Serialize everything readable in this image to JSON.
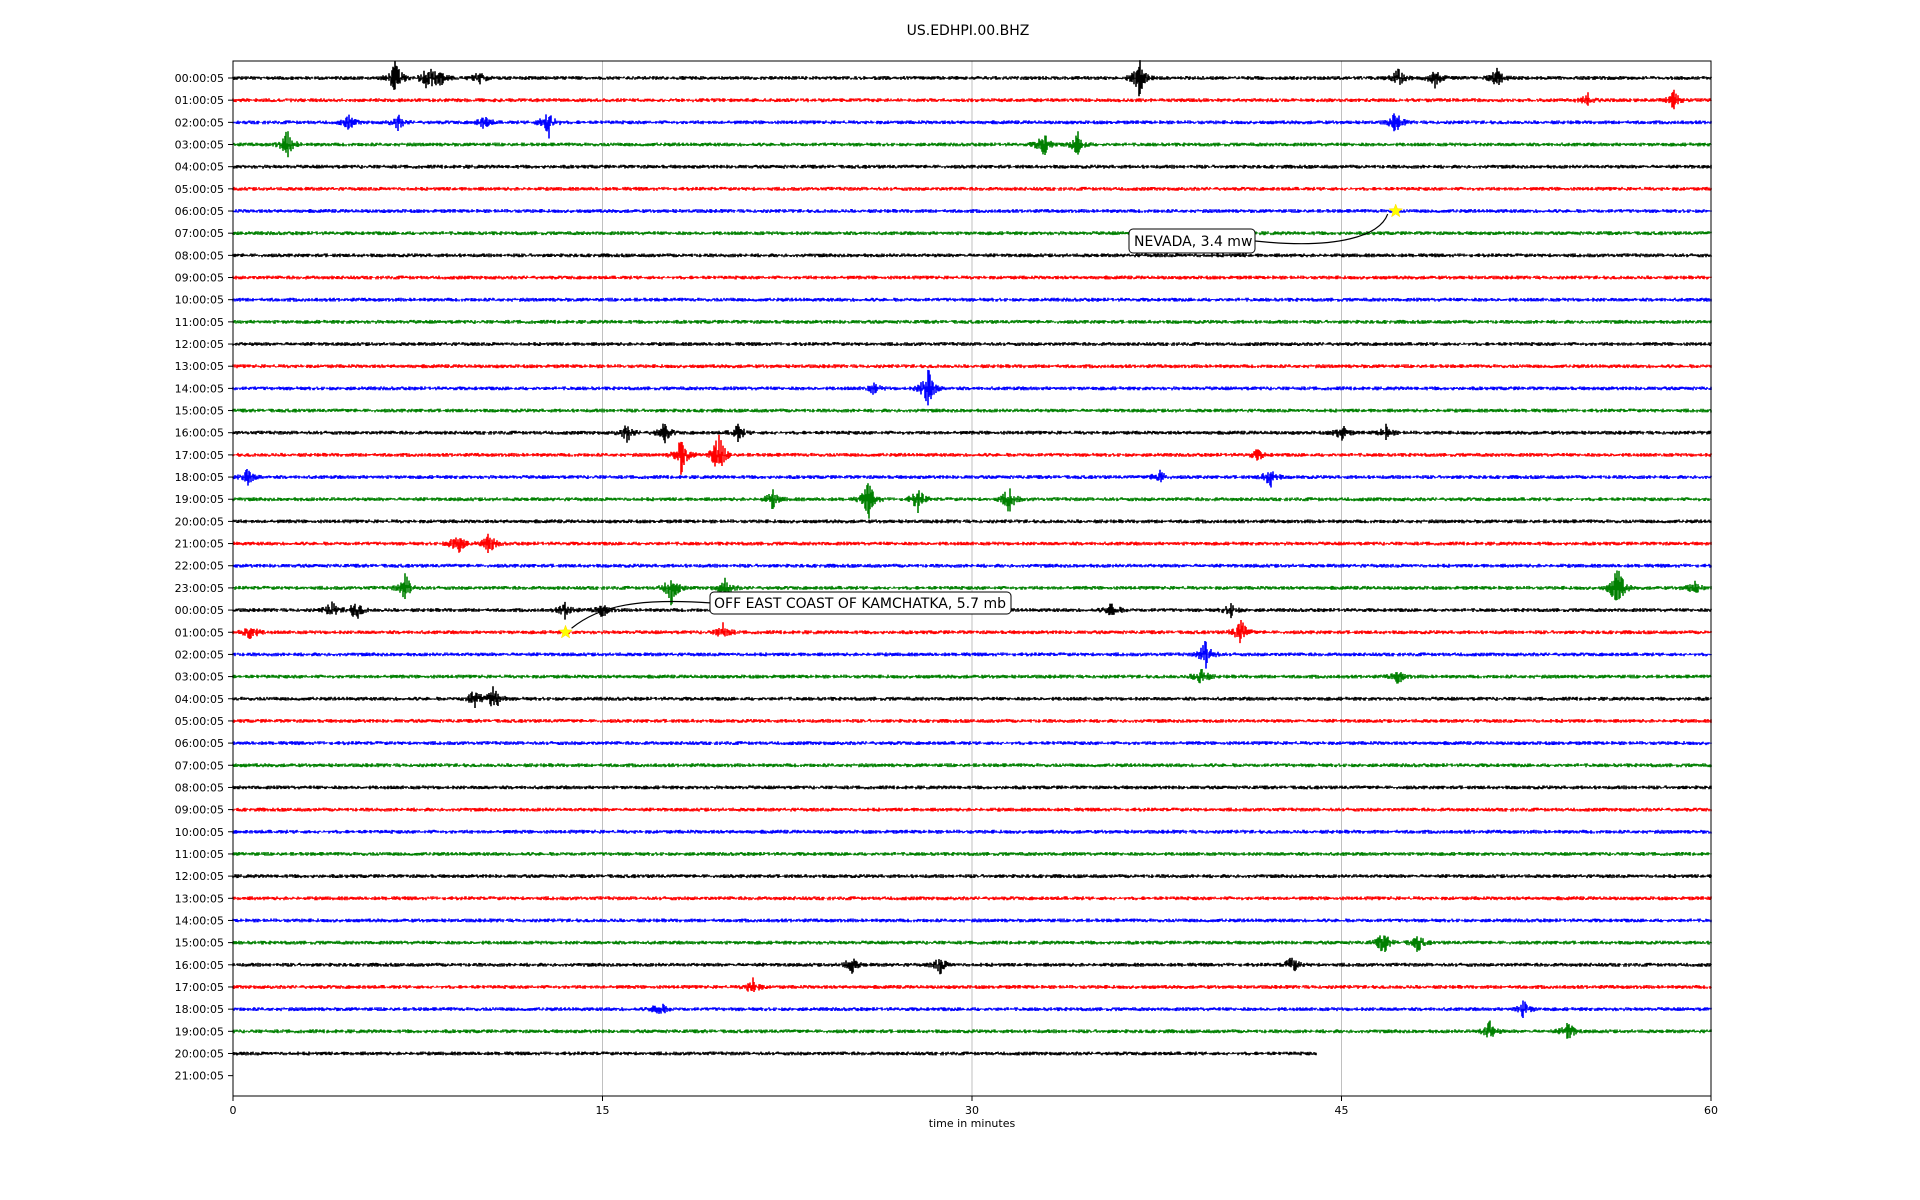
{
  "chart_data": {
    "type": "line",
    "title": "US.EDHPI.00.BHZ",
    "xlabel": "time in minutes",
    "ylabel": "",
    "xlim": [
      0,
      60
    ],
    "x_ticks": [
      0,
      15,
      30,
      45,
      60
    ],
    "grid": "vertical",
    "trace_colors": [
      "#000000",
      "#ff0000",
      "#0000ff",
      "#008000"
    ],
    "hour_labels": [
      "00:00:05",
      "01:00:05",
      "02:00:05",
      "03:00:05",
      "04:00:05",
      "05:00:05",
      "06:00:05",
      "07:00:05",
      "08:00:05",
      "09:00:05",
      "10:00:05",
      "11:00:05",
      "12:00:05",
      "13:00:05",
      "14:00:05",
      "15:00:05",
      "16:00:05",
      "17:00:05",
      "18:00:05",
      "19:00:05",
      "20:00:05",
      "21:00:05",
      "22:00:05",
      "23:00:05",
      "00:00:05",
      "01:00:05",
      "02:00:05",
      "03:00:05",
      "04:00:05",
      "05:00:05",
      "06:00:05",
      "07:00:05",
      "08:00:05",
      "09:00:05",
      "10:00:05",
      "11:00:05",
      "12:00:05",
      "13:00:05",
      "14:00:05",
      "15:00:05",
      "16:00:05",
      "17:00:05",
      "18:00:05",
      "19:00:05",
      "20:00:05",
      "21:00:05"
    ],
    "last_trace_end_minutes": 44,
    "bursts": [
      {
        "row": 0,
        "minute": 6.6,
        "amp": 1.0
      },
      {
        "row": 0,
        "minute": 7.9,
        "amp": 0.9
      },
      {
        "row": 0,
        "minute": 8.4,
        "amp": 0.5
      },
      {
        "row": 0,
        "minute": 10.0,
        "amp": 0.4
      },
      {
        "row": 0,
        "minute": 36.8,
        "amp": 1.1
      },
      {
        "row": 0,
        "minute": 47.3,
        "amp": 0.5
      },
      {
        "row": 0,
        "minute": 48.8,
        "amp": 0.5
      },
      {
        "row": 0,
        "minute": 51.3,
        "amp": 0.6
      },
      {
        "row": 1,
        "minute": 55.0,
        "amp": 0.4
      },
      {
        "row": 1,
        "minute": 58.5,
        "amp": 0.5
      },
      {
        "row": 2,
        "minute": 4.7,
        "amp": 0.4
      },
      {
        "row": 2,
        "minute": 6.7,
        "amp": 0.4
      },
      {
        "row": 2,
        "minute": 10.2,
        "amp": 0.4
      },
      {
        "row": 2,
        "minute": 12.8,
        "amp": 1.0
      },
      {
        "row": 2,
        "minute": 47.2,
        "amp": 0.6
      },
      {
        "row": 3,
        "minute": 2.2,
        "amp": 0.8
      },
      {
        "row": 3,
        "minute": 32.9,
        "amp": 0.8
      },
      {
        "row": 3,
        "minute": 34.3,
        "amp": 0.7
      },
      {
        "row": 14,
        "minute": 28.2,
        "amp": 1.4
      },
      {
        "row": 14,
        "minute": 26.0,
        "amp": 0.3
      },
      {
        "row": 16,
        "minute": 16.0,
        "amp": 0.5
      },
      {
        "row": 16,
        "minute": 17.5,
        "amp": 0.6
      },
      {
        "row": 16,
        "minute": 20.5,
        "amp": 0.5
      },
      {
        "row": 16,
        "minute": 45.0,
        "amp": 0.5
      },
      {
        "row": 16,
        "minute": 46.8,
        "amp": 0.4
      },
      {
        "row": 17,
        "minute": 18.2,
        "amp": 1.1
      },
      {
        "row": 17,
        "minute": 19.7,
        "amp": 1.4
      },
      {
        "row": 17,
        "minute": 41.6,
        "amp": 0.3
      },
      {
        "row": 18,
        "minute": 0.6,
        "amp": 0.5
      },
      {
        "row": 18,
        "minute": 37.6,
        "amp": 0.4
      },
      {
        "row": 18,
        "minute": 42.1,
        "amp": 0.6
      },
      {
        "row": 19,
        "minute": 21.9,
        "amp": 0.5
      },
      {
        "row": 19,
        "minute": 25.8,
        "amp": 1.1
      },
      {
        "row": 19,
        "minute": 27.8,
        "amp": 0.7
      },
      {
        "row": 19,
        "minute": 31.5,
        "amp": 0.8
      },
      {
        "row": 21,
        "minute": 9.1,
        "amp": 0.8
      },
      {
        "row": 21,
        "minute": 10.4,
        "amp": 0.6
      },
      {
        "row": 23,
        "minute": 7.0,
        "amp": 0.8
      },
      {
        "row": 23,
        "minute": 17.8,
        "amp": 1.0
      },
      {
        "row": 23,
        "minute": 20.0,
        "amp": 0.6
      },
      {
        "row": 23,
        "minute": 56.2,
        "amp": 1.5
      },
      {
        "row": 23,
        "minute": 59.3,
        "amp": 0.4
      },
      {
        "row": 24,
        "minute": 4.0,
        "amp": 0.5
      },
      {
        "row": 24,
        "minute": 5.0,
        "amp": 0.6
      },
      {
        "row": 24,
        "minute": 13.5,
        "amp": 0.5
      },
      {
        "row": 24,
        "minute": 15.0,
        "amp": 0.4
      },
      {
        "row": 24,
        "minute": 35.7,
        "amp": 0.5
      },
      {
        "row": 24,
        "minute": 40.5,
        "amp": 0.4
      },
      {
        "row": 25,
        "minute": 0.7,
        "amp": 0.6
      },
      {
        "row": 25,
        "minute": 19.9,
        "amp": 0.5
      },
      {
        "row": 25,
        "minute": 40.9,
        "amp": 0.8
      },
      {
        "row": 26,
        "minute": 39.5,
        "amp": 0.9
      },
      {
        "row": 27,
        "minute": 39.3,
        "amp": 0.6
      },
      {
        "row": 27,
        "minute": 47.3,
        "amp": 0.4
      },
      {
        "row": 28,
        "minute": 9.8,
        "amp": 0.6
      },
      {
        "row": 28,
        "minute": 10.6,
        "amp": 0.8
      },
      {
        "row": 39,
        "minute": 46.7,
        "amp": 0.7
      },
      {
        "row": 39,
        "minute": 48.1,
        "amp": 0.5
      },
      {
        "row": 40,
        "minute": 25.1,
        "amp": 0.5
      },
      {
        "row": 40,
        "minute": 28.7,
        "amp": 0.5
      },
      {
        "row": 40,
        "minute": 43.0,
        "amp": 0.5
      },
      {
        "row": 41,
        "minute": 21.1,
        "amp": 0.5
      },
      {
        "row": 42,
        "minute": 17.3,
        "amp": 0.5
      },
      {
        "row": 42,
        "minute": 52.4,
        "amp": 0.5
      },
      {
        "row": 43,
        "minute": 51.0,
        "amp": 0.6
      },
      {
        "row": 43,
        "minute": 54.2,
        "amp": 0.6
      }
    ],
    "events": [
      {
        "label": "NEVADA, 3.4 mw",
        "row": 6,
        "minute": 47.2
      },
      {
        "label": "OFF EAST COAST OF KAMCHATKA, 5.7 mb",
        "row": 25,
        "minute": 13.5
      }
    ]
  }
}
